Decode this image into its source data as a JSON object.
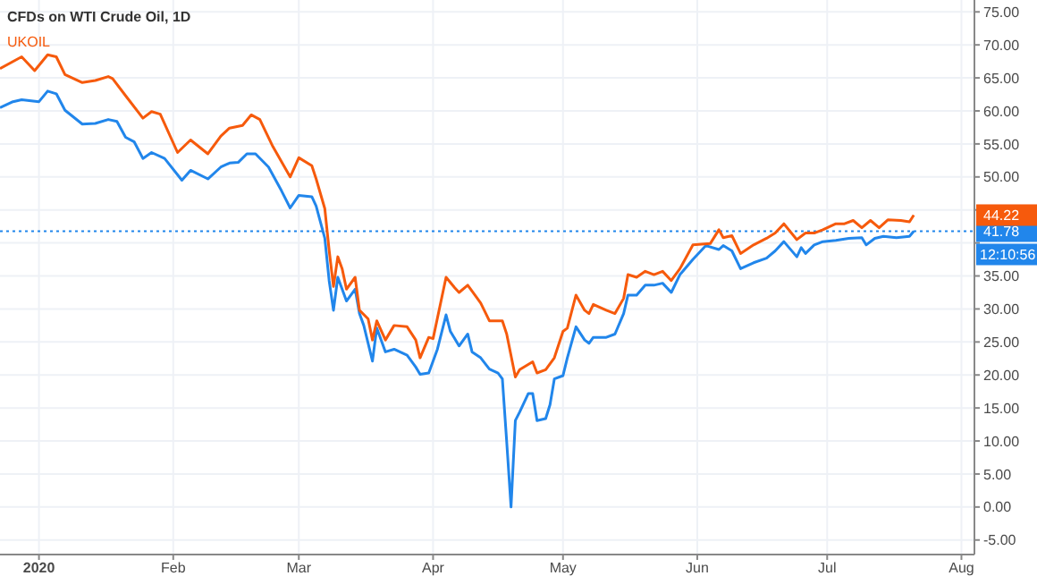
{
  "chart_data": {
    "type": "line",
    "title": "CFDs on WTI Crude Oil, 1D",
    "xlim": [
      "2019-12-23",
      "2020-08-04"
    ],
    "ylim": [
      -7.2,
      76.8
    ],
    "xticks": [
      {
        "value": "2020-01-01",
        "label": "2020"
      },
      {
        "value": "2020-02-01",
        "label": "Feb"
      },
      {
        "value": "2020-03-01",
        "label": "Mar"
      },
      {
        "value": "2020-04-01",
        "label": "Apr"
      },
      {
        "value": "2020-05-01",
        "label": "May"
      },
      {
        "value": "2020-06-01",
        "label": "Jun"
      },
      {
        "value": "2020-07-01",
        "label": "Jul"
      },
      {
        "value": "2020-08-01",
        "label": "Aug"
      }
    ],
    "yticks": [
      {
        "value": -5,
        "label": "-5.00"
      },
      {
        "value": 0,
        "label": "0.00"
      },
      {
        "value": 5,
        "label": "5.00"
      },
      {
        "value": 10,
        "label": "10.00"
      },
      {
        "value": 15,
        "label": "15.00"
      },
      {
        "value": 20,
        "label": "20.00"
      },
      {
        "value": 25,
        "label": "25.00"
      },
      {
        "value": 30,
        "label": "30.00"
      },
      {
        "value": 35,
        "label": "35.00"
      },
      {
        "value": 40,
        "label": null
      },
      {
        "value": 45,
        "label": null
      },
      {
        "value": 50,
        "label": "50.00"
      },
      {
        "value": 55,
        "label": "55.00"
      },
      {
        "value": 60,
        "label": "60.00"
      },
      {
        "value": 65,
        "label": "65.00"
      },
      {
        "value": 70,
        "label": "70.00"
      },
      {
        "value": 75,
        "label": "75.00"
      }
    ],
    "grid": true,
    "legend": "top left",
    "marker": "none",
    "line_style": "solid",
    "series": [
      {
        "color": "#2186eb",
        "x": [
          "2019-12-23",
          "2019-12-26",
          "2019-12-28",
          "2020-01-01",
          "2020-01-03",
          "2020-01-05",
          "2020-01-07",
          "2020-01-11",
          "2020-01-14",
          "2020-01-17",
          "2020-01-19",
          "2020-01-21",
          "2020-01-23",
          "2020-01-25",
          "2020-01-27",
          "2020-01-30",
          "2020-02-03",
          "2020-02-05",
          "2020-02-09",
          "2020-02-12",
          "2020-02-14",
          "2020-02-16",
          "2020-02-18",
          "2020-02-20",
          "2020-02-23",
          "2020-02-26",
          "2020-02-28",
          "2020-03-01",
          "2020-03-04",
          "2020-03-05",
          "2020-03-07",
          "2020-03-08",
          "2020-03-09",
          "2020-03-10",
          "2020-03-11",
          "2020-03-12",
          "2020-03-14",
          "2020-03-15",
          "2020-03-16",
          "2020-03-18",
          "2020-03-19",
          "2020-03-21",
          "2020-03-23",
          "2020-03-26",
          "2020-03-28",
          "2020-03-29",
          "2020-03-31",
          "2020-04-02",
          "2020-04-04",
          "2020-04-05",
          "2020-04-07",
          "2020-04-09",
          "2020-04-10",
          "2020-04-12",
          "2020-04-14",
          "2020-04-16",
          "2020-04-17",
          "2020-04-18",
          "2020-04-19",
          "2020-04-20",
          "2020-04-21",
          "2020-04-23",
          "2020-04-24",
          "2020-04-25",
          "2020-04-27",
          "2020-04-28",
          "2020-04-29",
          "2020-05-01",
          "2020-05-02",
          "2020-05-04",
          "2020-05-06",
          "2020-05-07",
          "2020-05-08",
          "2020-05-11",
          "2020-05-13",
          "2020-05-15",
          "2020-05-16",
          "2020-05-18",
          "2020-05-20",
          "2020-05-22",
          "2020-05-24",
          "2020-05-26",
          "2020-05-28",
          "2020-05-31",
          "2020-06-03",
          "2020-06-06",
          "2020-06-07",
          "2020-06-09",
          "2020-06-11",
          "2020-06-14",
          "2020-06-17",
          "2020-06-19",
          "2020-06-21",
          "2020-06-24",
          "2020-06-25",
          "2020-06-26",
          "2020-06-28",
          "2020-06-30",
          "2020-07-03",
          "2020-07-06",
          "2020-07-09",
          "2020-07-10",
          "2020-07-12",
          "2020-07-14",
          "2020-07-17",
          "2020-07-20",
          "2020-07-21"
        ],
        "values": [
          60.5,
          61.4,
          61.7,
          61.4,
          63.0,
          62.6,
          60.1,
          58.0,
          58.1,
          58.7,
          58.4,
          56.0,
          55.3,
          52.8,
          53.7,
          52.8,
          49.5,
          51.0,
          49.7,
          51.5,
          52.1,
          52.2,
          53.5,
          53.5,
          51.5,
          47.9,
          45.3,
          47.2,
          47.0,
          45.6,
          40.7,
          34.3,
          29.8,
          34.8,
          33.0,
          31.2,
          33.0,
          29.3,
          27.5,
          22.1,
          27.1,
          23.5,
          23.9,
          23.0,
          21.2,
          20.1,
          20.3,
          23.9,
          29.1,
          26.6,
          24.4,
          26.2,
          23.5,
          22.6,
          20.9,
          20.3,
          19.4,
          9.9,
          0.0,
          13.1,
          14.4,
          17.2,
          17.2,
          13.1,
          13.4,
          15.5,
          19.4,
          19.9,
          22.6,
          27.3,
          25.3,
          24.8,
          25.7,
          25.7,
          26.2,
          29.3,
          32.1,
          32.1,
          33.6,
          33.6,
          33.9,
          32.5,
          35.2,
          37.5,
          39.6,
          39.0,
          39.6,
          38.8,
          36.1,
          37.0,
          37.7,
          38.8,
          40.2,
          37.9,
          39.3,
          38.4,
          39.7,
          40.2,
          40.4,
          40.7,
          40.8,
          39.7,
          40.7,
          41.0,
          40.8,
          41.0,
          41.78
        ]
      },
      {
        "name": "UKOIL",
        "color": "#f65a0c",
        "x": [
          "2019-12-23",
          "2019-12-28",
          "2019-12-31",
          "2020-01-03",
          "2020-01-05",
          "2020-01-07",
          "2020-01-11",
          "2020-01-14",
          "2020-01-17",
          "2020-01-18",
          "2020-01-21",
          "2020-01-25",
          "2020-01-27",
          "2020-01-29",
          "2020-02-02",
          "2020-02-05",
          "2020-02-09",
          "2020-02-12",
          "2020-02-14",
          "2020-02-17",
          "2020-02-19",
          "2020-02-21",
          "2020-02-24",
          "2020-02-28",
          "2020-03-01",
          "2020-03-04",
          "2020-03-05",
          "2020-03-07",
          "2020-03-08",
          "2020-03-09",
          "2020-03-10",
          "2020-03-11",
          "2020-03-12",
          "2020-03-14",
          "2020-03-15",
          "2020-03-17",
          "2020-03-18",
          "2020-03-19",
          "2020-03-21",
          "2020-03-23",
          "2020-03-26",
          "2020-03-28",
          "2020-03-29",
          "2020-03-31",
          "2020-04-01",
          "2020-04-04",
          "2020-04-06",
          "2020-04-07",
          "2020-04-09",
          "2020-04-11",
          "2020-04-12",
          "2020-04-14",
          "2020-04-17",
          "2020-04-18",
          "2020-04-20",
          "2020-04-21",
          "2020-04-24",
          "2020-04-25",
          "2020-04-27",
          "2020-04-29",
          "2020-05-01",
          "2020-05-02",
          "2020-05-04",
          "2020-05-06",
          "2020-05-07",
          "2020-05-08",
          "2020-05-11",
          "2020-05-13",
          "2020-05-15",
          "2020-05-16",
          "2020-05-18",
          "2020-05-20",
          "2020-05-22",
          "2020-05-24",
          "2020-05-26",
          "2020-05-28",
          "2020-05-31",
          "2020-06-04",
          "2020-06-06",
          "2020-06-07",
          "2020-06-09",
          "2020-06-11",
          "2020-06-14",
          "2020-06-17",
          "2020-06-19",
          "2020-06-21",
          "2020-06-24",
          "2020-06-26",
          "2020-06-28",
          "2020-06-30",
          "2020-07-03",
          "2020-07-05",
          "2020-07-07",
          "2020-07-09",
          "2020-07-11",
          "2020-07-13",
          "2020-07-15",
          "2020-07-18",
          "2020-07-20",
          "2020-07-21"
        ],
        "values": [
          66.4,
          68.2,
          66.1,
          68.5,
          68.2,
          65.5,
          64.3,
          64.6,
          65.2,
          64.9,
          62.3,
          58.9,
          59.9,
          59.5,
          53.7,
          55.6,
          53.5,
          56.2,
          57.4,
          57.8,
          59.4,
          58.7,
          54.6,
          50.0,
          52.9,
          51.7,
          49.7,
          45.2,
          38.9,
          33.4,
          37.9,
          36.1,
          33.0,
          34.8,
          29.8,
          28.5,
          25.3,
          28.2,
          25.3,
          27.5,
          27.3,
          25.3,
          22.6,
          25.7,
          25.5,
          34.8,
          33.2,
          32.5,
          33.6,
          31.8,
          30.9,
          28.2,
          28.2,
          26.2,
          19.7,
          20.8,
          22.0,
          20.3,
          20.8,
          22.6,
          26.6,
          27.1,
          32.1,
          29.8,
          29.3,
          30.7,
          29.8,
          29.3,
          31.6,
          35.2,
          34.8,
          35.7,
          35.2,
          35.7,
          34.3,
          36.1,
          39.7,
          39.9,
          42.0,
          40.8,
          41.1,
          38.4,
          39.7,
          40.7,
          41.5,
          42.9,
          40.5,
          41.5,
          41.5,
          42.0,
          42.9,
          42.9,
          43.4,
          42.3,
          43.4,
          42.3,
          43.5,
          43.4,
          43.2,
          44.22
        ]
      }
    ],
    "ref_lines": [
      {
        "axis": "y",
        "value": 41.78,
        "label": "41.78",
        "color": "#2186eb",
        "line_style": "dotted"
      }
    ],
    "annotations": [
      "44.22",
      "12:10:56"
    ]
  }
}
